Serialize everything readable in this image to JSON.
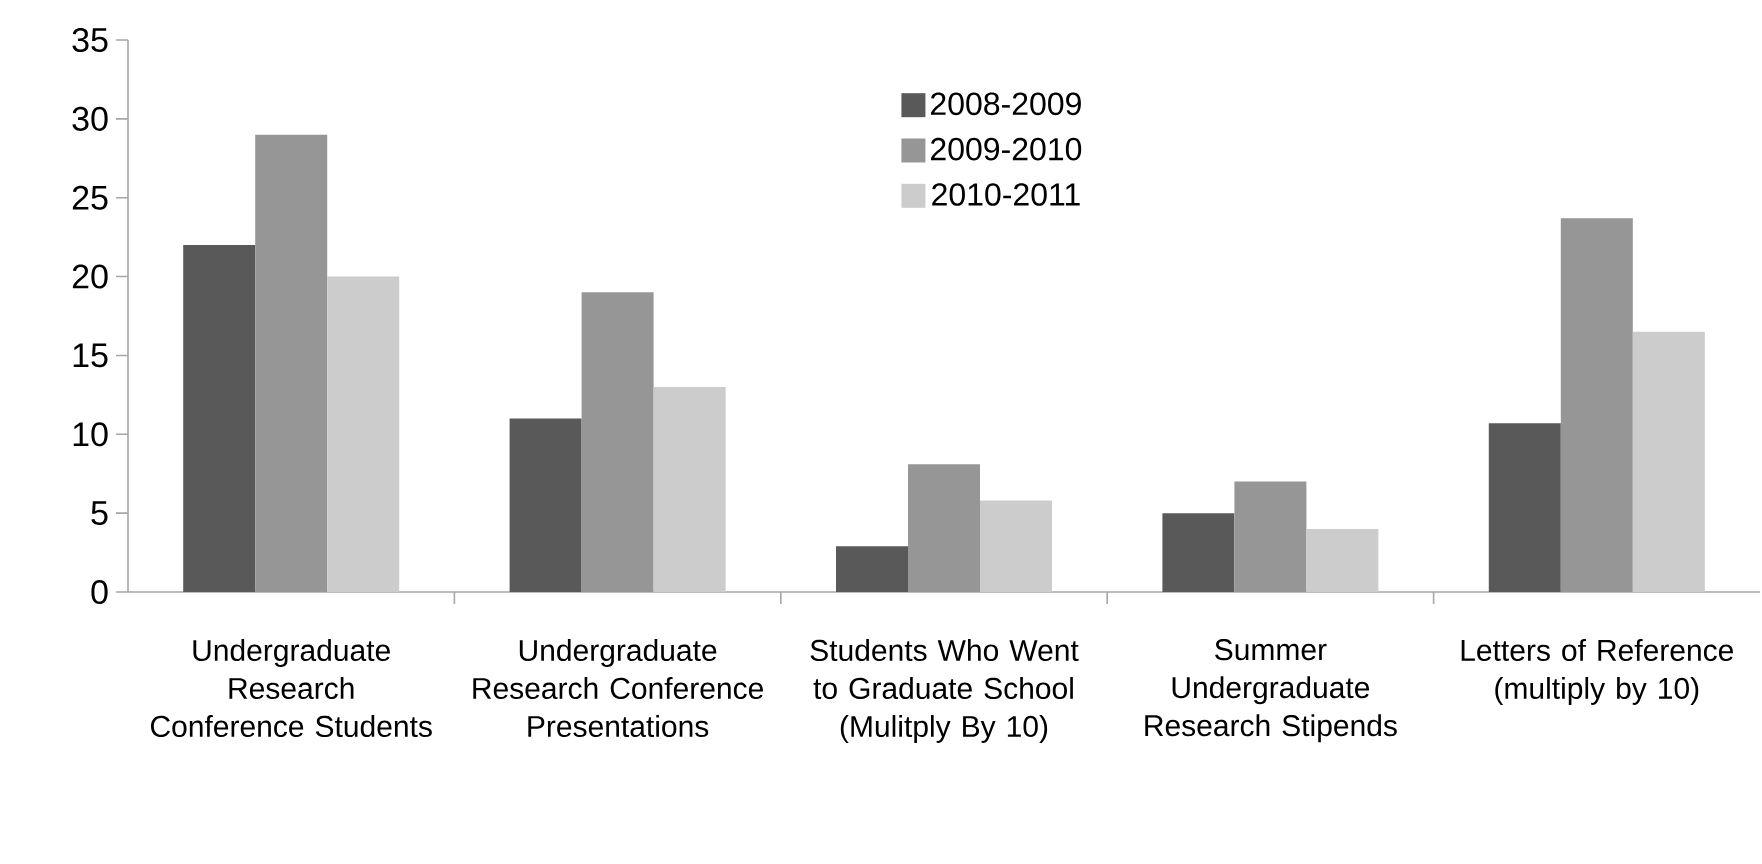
{
  "chart_data": {
    "type": "bar",
    "categories": [
      "Undergraduate Research Conference Students",
      "Undergraduate Research Conference Presentations",
      "Students Who Went to Graduate School (Mulitply By 10)",
      "Summer Undergraduate Research Stipends",
      "Letters of Reference (multiply by 10)"
    ],
    "series": [
      {
        "name": "2008-2009",
        "color": "#595959",
        "values": [
          22,
          11,
          2.9,
          5,
          10.7
        ]
      },
      {
        "name": "2009-2010",
        "color": "#969696",
        "values": [
          29,
          19,
          8.1,
          7,
          23.7
        ]
      },
      {
        "name": "2010-2011",
        "color": "#cccccc",
        "values": [
          20,
          13,
          5.8,
          4,
          16.5
        ]
      }
    ],
    "ylim": [
      0,
      35
    ],
    "yticks": [
      0,
      5,
      10,
      15,
      20,
      25,
      30,
      35
    ],
    "grid": false,
    "legend": "top"
  }
}
